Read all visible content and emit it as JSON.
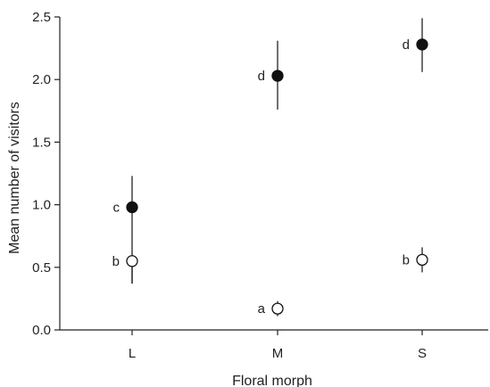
{
  "chart_data": {
    "type": "scatter",
    "title": "",
    "xlabel": "Floral morph",
    "ylabel": "Mean number of visitors",
    "categories": [
      "L",
      "M",
      "S"
    ],
    "ylim": [
      0.0,
      2.5
    ],
    "yticks": [
      "0.0",
      "0.5",
      "1.0",
      "1.5",
      "2.0",
      "2.5"
    ],
    "ytick_values": [
      0,
      0.5,
      1.0,
      1.5,
      2.0,
      2.5
    ],
    "grid": false,
    "legend": "none",
    "series": [
      {
        "marker": "filled-circle",
        "color": "#111111",
        "values": [
          0.98,
          2.03,
          2.28
        ],
        "error_low": [
          0.37,
          1.76,
          2.06
        ],
        "error_high": [
          1.23,
          2.31,
          2.49
        ],
        "labels": [
          "c",
          "d",
          "d"
        ]
      },
      {
        "marker": "open-circle",
        "color": "#111111",
        "values": [
          0.55,
          0.17,
          0.56
        ],
        "error_low": [
          0.37,
          0.11,
          0.46
        ],
        "error_high": [
          0.55,
          0.23,
          0.66
        ],
        "labels": [
          "b",
          "a",
          "b"
        ]
      }
    ]
  }
}
